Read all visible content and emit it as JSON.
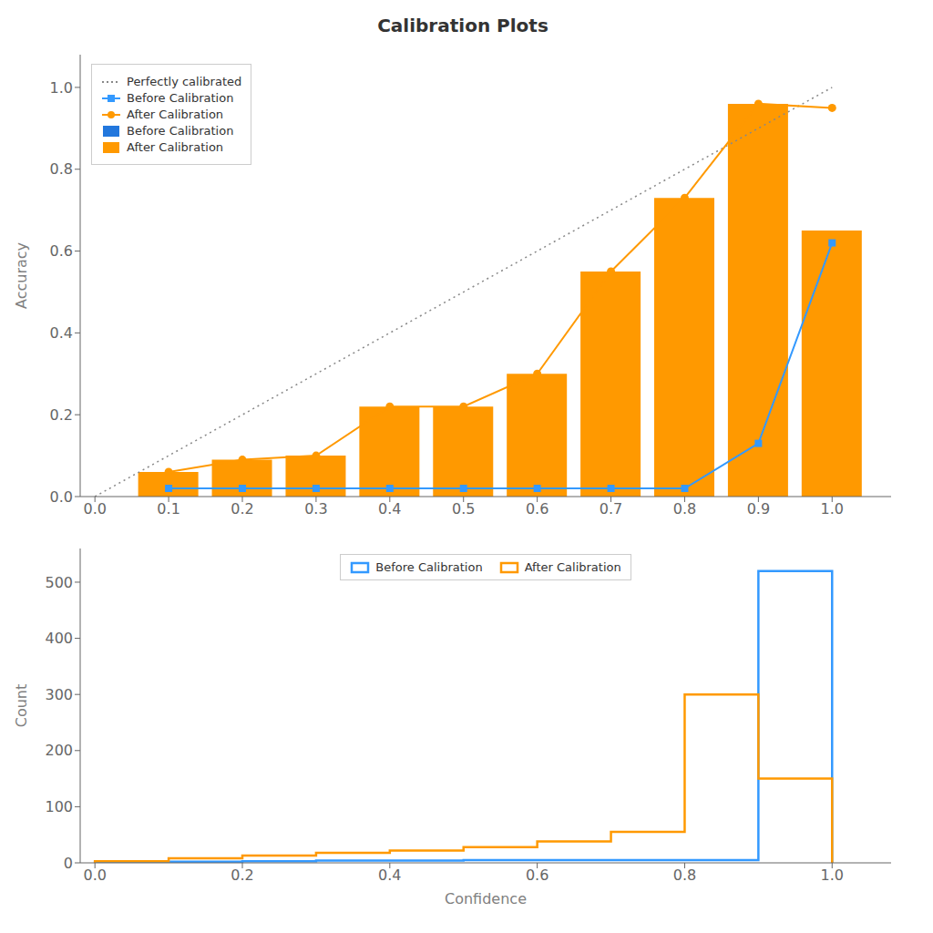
{
  "chart_data": [
    {
      "type": "bar",
      "title": "Calibration Plots",
      "y_label": "Accuracy",
      "x": [
        0.1,
        0.2,
        0.3,
        0.4,
        0.5,
        0.6,
        0.7,
        0.8,
        0.9,
        1.0
      ],
      "series": [
        {
          "name": "Perfectly calibrated",
          "type": "line",
          "line_style": "dotted",
          "color": "#888888",
          "x": [
            0,
            1
          ],
          "values": [
            0,
            1
          ]
        },
        {
          "name": "Before Calibration",
          "type": "line",
          "marker": "square",
          "color": "#3399FF",
          "values": [
            0.02,
            0.02,
            0.02,
            0.02,
            0.02,
            0.02,
            0.02,
            0.02,
            0.13,
            0.62
          ]
        },
        {
          "name": "After Calibration",
          "type": "line",
          "marker": "circle",
          "color": "#FF9900",
          "values": [
            0.06,
            0.09,
            0.1,
            0.22,
            0.22,
            0.3,
            0.55,
            0.73,
            0.96,
            0.95
          ]
        },
        {
          "name": "Before Calibration",
          "type": "bar",
          "color": "#2277DD",
          "values": [
            0.0,
            0.0,
            0.0,
            0.0,
            0.0,
            0.0,
            0.0,
            0.0,
            0.0,
            0.0
          ]
        },
        {
          "name": "After Calibration",
          "type": "bar",
          "color": "#FF9900",
          "values": [
            0.06,
            0.09,
            0.1,
            0.22,
            0.22,
            0.3,
            0.55,
            0.73,
            0.96,
            0.65
          ]
        }
      ],
      "xlim": [
        -0.02,
        1.08
      ],
      "ylim": [
        0.0,
        1.08
      ],
      "xticks": [
        {
          "value": 0.0,
          "label": "0.0"
        },
        0.1,
        0.2,
        0.3,
        0.4,
        0.5,
        0.6,
        0.7,
        0.8,
        0.9,
        {
          "value": 1.0,
          "label": "1.0"
        }
      ],
      "yticks": [
        {
          "value": 0.0,
          "label": "0.0"
        },
        0.2,
        0.4,
        0.6,
        0.8,
        {
          "value": 1.0,
          "label": "1.0"
        }
      ],
      "grid": false,
      "legend": "upper left"
    },
    {
      "type": "histogram",
      "x_label": "Confidence",
      "y_label": "Count",
      "bins": [
        0.0,
        0.1,
        0.2,
        0.3,
        0.4,
        0.5,
        0.6,
        0.7,
        0.8,
        0.9,
        1.0
      ],
      "series": [
        {
          "name": "Before Calibration",
          "color": "#3399FF",
          "values": [
            2,
            2,
            3,
            4,
            4,
            5,
            5,
            5,
            5,
            520
          ]
        },
        {
          "name": "After Calibration",
          "color": "#FF9900",
          "values": [
            3,
            8,
            13,
            18,
            22,
            28,
            38,
            55,
            300,
            150
          ]
        }
      ],
      "xlim": [
        -0.02,
        1.08
      ],
      "ylim": [
        0,
        560
      ],
      "xticks": [
        {
          "value": 0.0,
          "label": "0.0"
        },
        0.2,
        0.4,
        0.6,
        0.8,
        {
          "value": 1.0,
          "label": "1.0"
        }
      ],
      "yticks": [
        0,
        100,
        200,
        300,
        400,
        500
      ],
      "grid": false,
      "legend": "upper center"
    }
  ]
}
